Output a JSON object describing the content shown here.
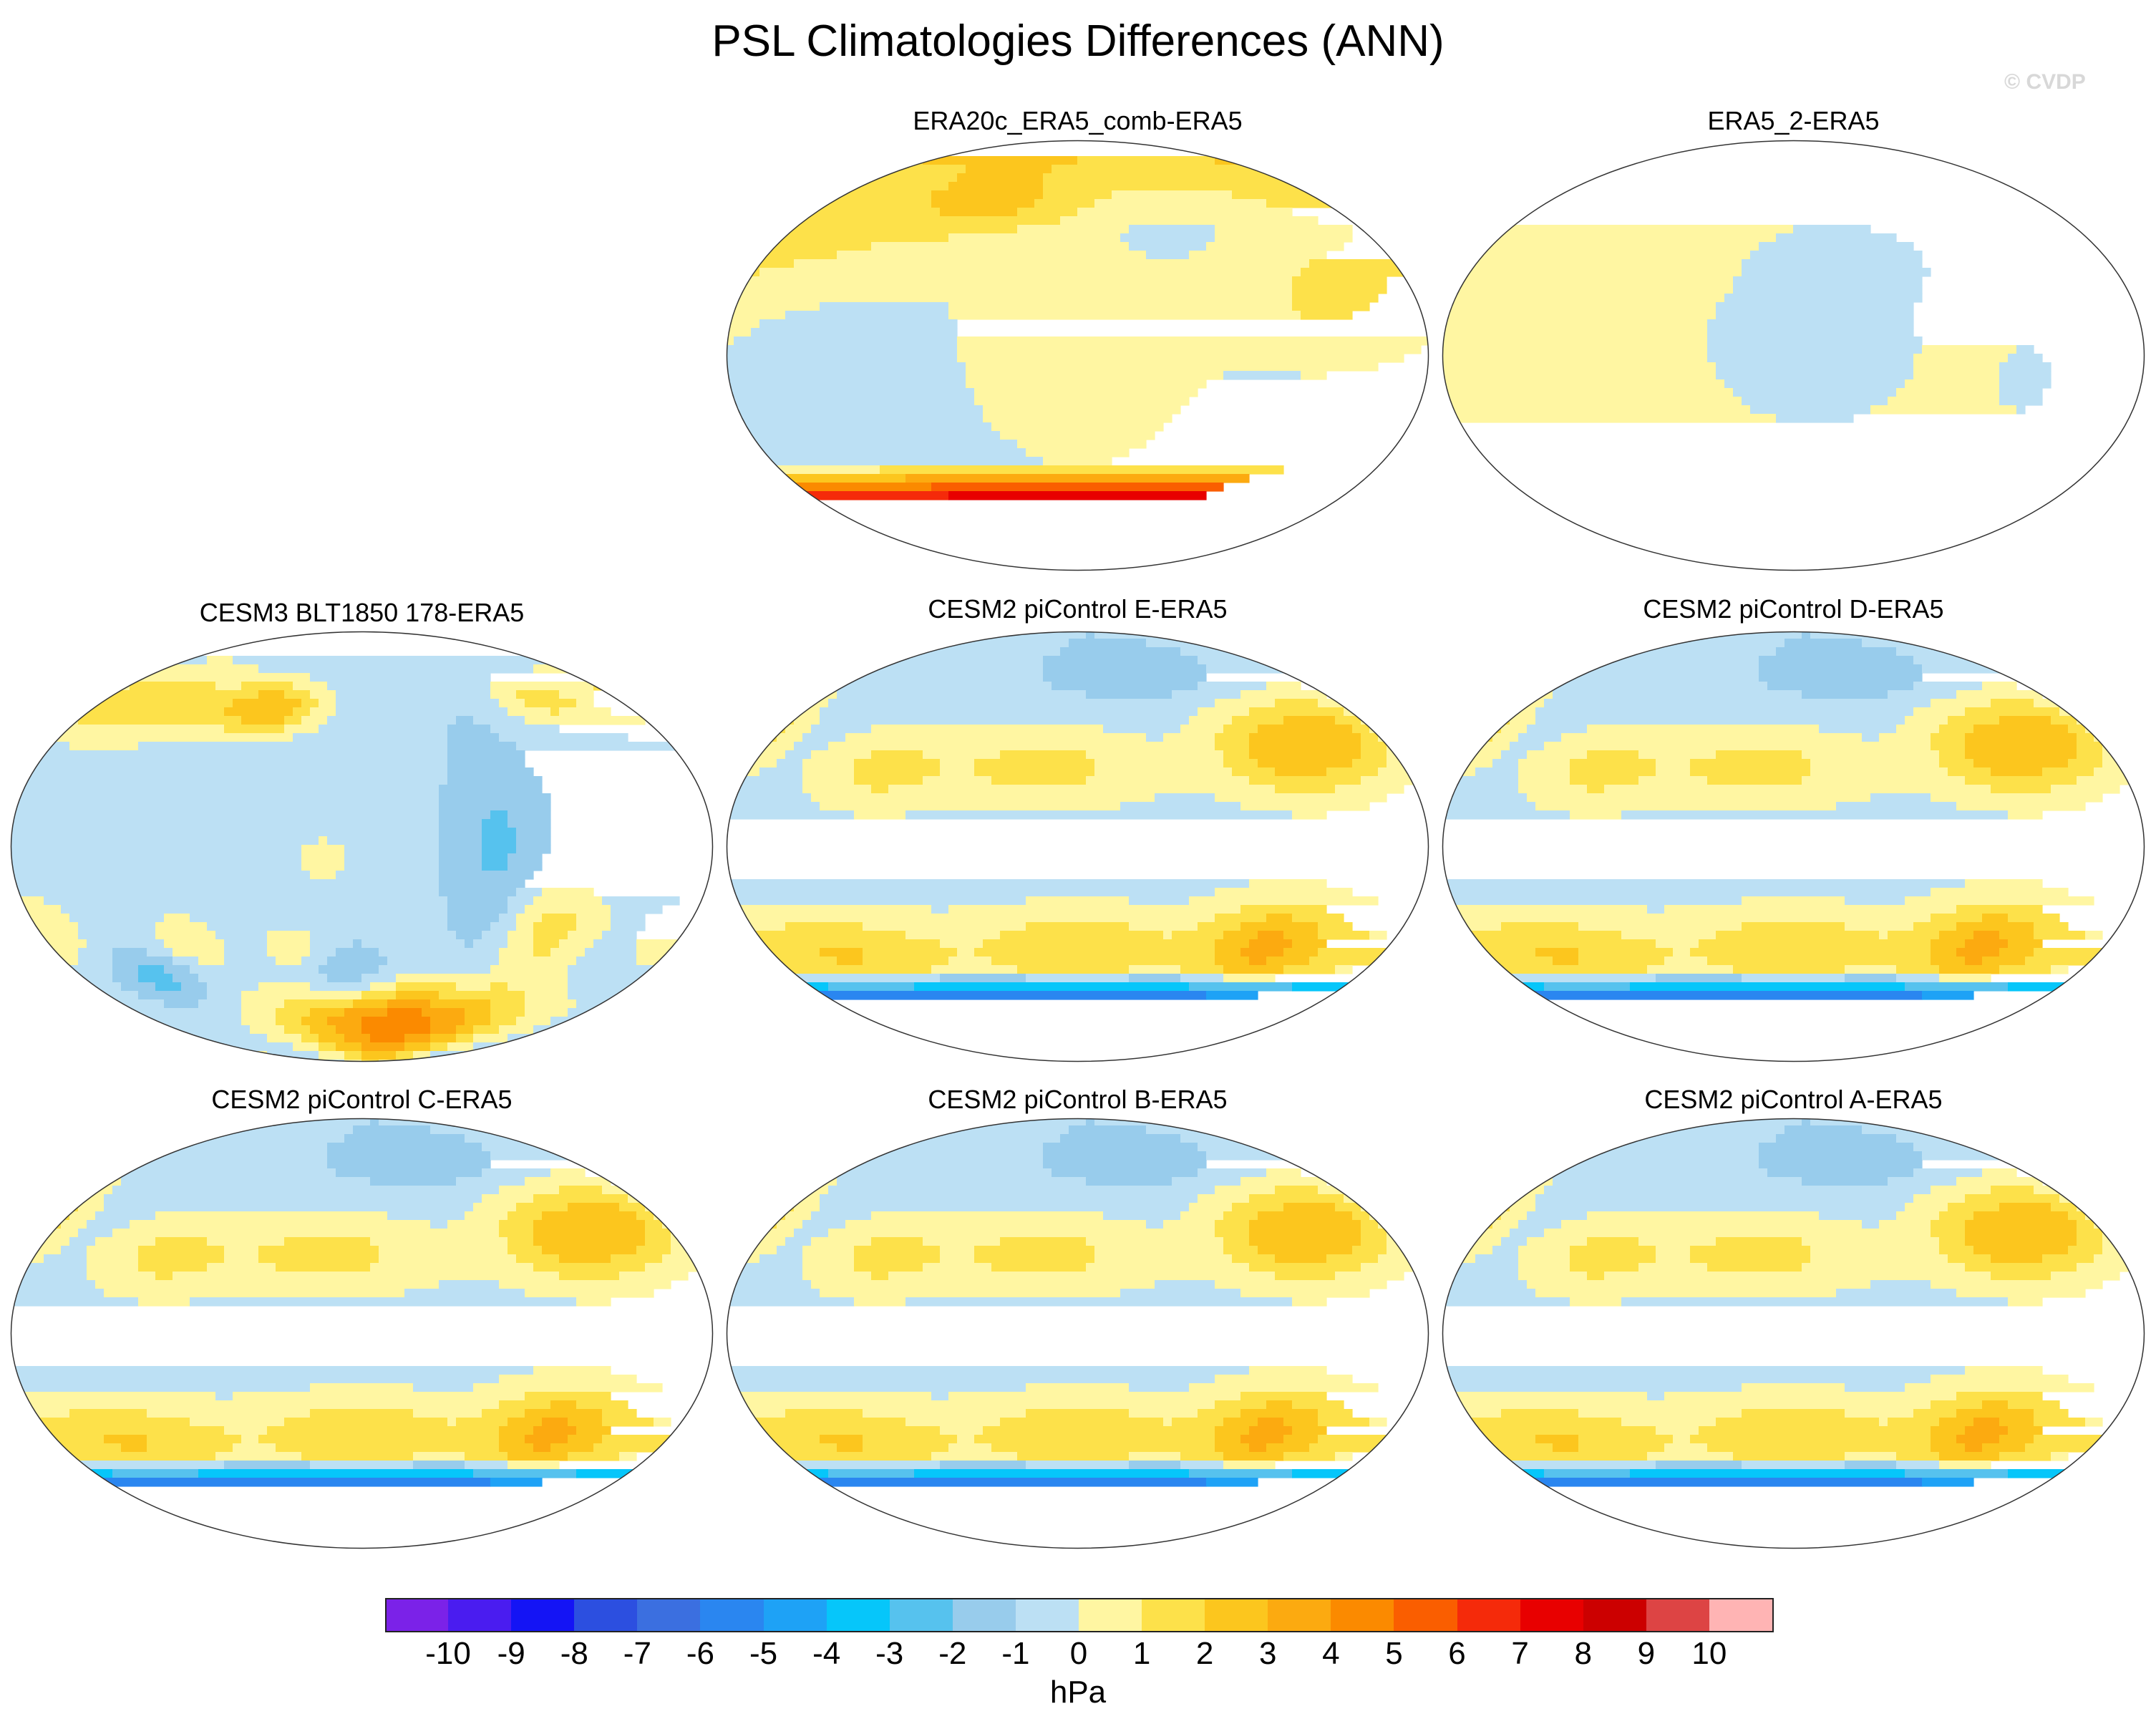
{
  "title": "PSL Climatologies Differences (ANN)",
  "watermark": "© CVDP",
  "panels": [
    {
      "title": "ERA20c_ERA5_comb-ERA5",
      "pattern": "era20c"
    },
    {
      "title": "ERA5_2-ERA5",
      "pattern": "era5_2"
    },
    {
      "title": "CESM3 BLT1850 178-ERA5",
      "pattern": "cesm3"
    },
    {
      "title": "CESM2 piControl E-ERA5",
      "pattern": "cesm2"
    },
    {
      "title": "CESM2 piControl D-ERA5",
      "pattern": "cesm2"
    },
    {
      "title": "CESM2 piControl C-ERA5",
      "pattern": "cesm2"
    },
    {
      "title": "CESM2 piControl B-ERA5",
      "pattern": "cesm2"
    },
    {
      "title": "CESM2 piControl A-ERA5",
      "pattern": "cesm2"
    }
  ],
  "colorbar": {
    "units": "hPa",
    "labels": [
      "-10",
      "-9",
      "-8",
      "-7",
      "-6",
      "-5",
      "-4",
      "-3",
      "-2",
      "-1",
      "0",
      "1",
      "2",
      "3",
      "4",
      "5",
      "6",
      "7",
      "8",
      "9",
      "10"
    ],
    "colors": [
      "#7b22e8",
      "#4a1cf0",
      "#1414f5",
      "#2c4fe0",
      "#3b6fe0",
      "#2a86f0",
      "#1ea2f6",
      "#06c6fa",
      "#56c2ee",
      "#98ccec",
      "#bce0f4",
      "#fff6a2",
      "#fde14a",
      "#fcc61e",
      "#fcaa10",
      "#fb8a00",
      "#fa5e00",
      "#f52a0a",
      "#e80000",
      "#cc0000",
      "#dd4444",
      "#ffb4b4"
    ]
  }
}
